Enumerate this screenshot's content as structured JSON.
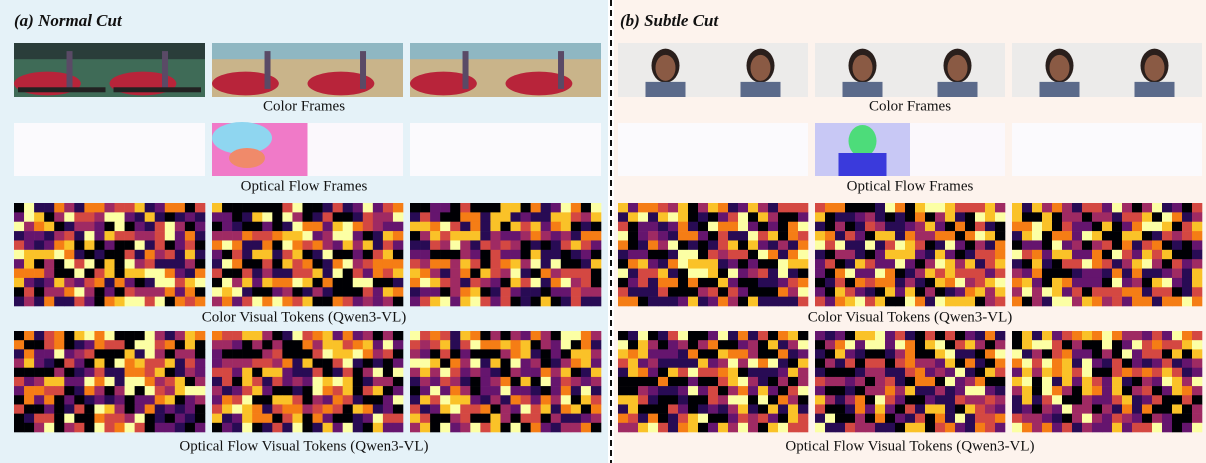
{
  "panels": [
    {
      "title": "(a) Normal Cut",
      "captions": [
        "Color Frames",
        "Optical Flow Frames",
        "Color Visual Tokens (Qwen3-VL)",
        "Optical Flow Visual Tokens (Qwen3-VL)"
      ]
    },
    {
      "title": "(b) Subtle Cut",
      "captions": [
        "Color Frames",
        "Optical Flow Frames",
        "Color Visual Tokens (Qwen3-VL)",
        "Optical Flow Visual Tokens (Qwen3-VL)"
      ]
    }
  ]
}
